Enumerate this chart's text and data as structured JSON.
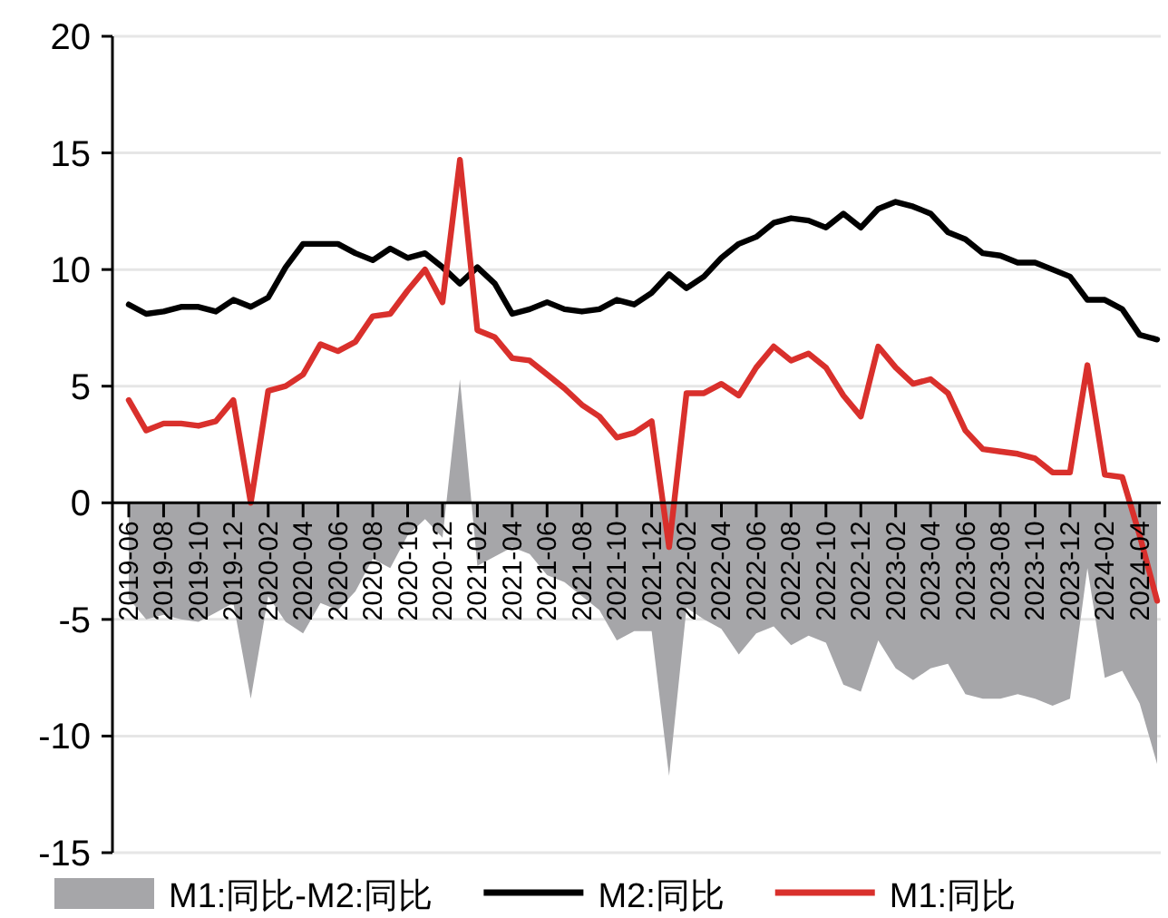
{
  "chart_data": {
    "type": "line",
    "categories": [
      "2019-06",
      null,
      "2019-08",
      null,
      "2019-10",
      null,
      "2019-12",
      null,
      "2020-02",
      null,
      "2020-04",
      null,
      "2020-06",
      null,
      "2020-08",
      null,
      "2020-10",
      null,
      "2020-12",
      null,
      "2021-02",
      null,
      "2021-04",
      null,
      "2021-06",
      null,
      "2021-08",
      null,
      "2021-10",
      null,
      "2021-12",
      null,
      "2022-02",
      null,
      "2022-04",
      null,
      "2022-06",
      null,
      "2022-08",
      null,
      "2022-10",
      null,
      "2022-12",
      null,
      "2023-02",
      null,
      "2023-04",
      null,
      "2023-06",
      null,
      "2023-08",
      null,
      "2023-10",
      null,
      "2023-12",
      null,
      "2024-02",
      null,
      "2024-04",
      null
    ],
    "series": [
      {
        "name": "M1:同比-M2:同比",
        "type": "area",
        "color": "#a6a6a9",
        "values": [
          -4.1,
          -5.0,
          -4.8,
          -5.0,
          -5.1,
          -4.7,
          -4.3,
          -8.4,
          -4.0,
          -5.1,
          -5.6,
          -4.3,
          -4.6,
          -3.8,
          -2.4,
          -2.8,
          -1.4,
          -0.7,
          -1.5,
          5.3,
          -2.7,
          -2.3,
          -1.9,
          -2.2,
          -3.1,
          -3.4,
          -4.0,
          -4.6,
          -5.9,
          -5.5,
          -5.5,
          -11.7,
          -4.5,
          -5.0,
          -5.4,
          -6.5,
          -5.6,
          -5.3,
          -6.1,
          -5.7,
          -6.0,
          -7.8,
          -8.1,
          -5.9,
          -7.1,
          -7.6,
          -7.1,
          -6.9,
          -8.2,
          -8.4,
          -8.4,
          -8.2,
          -8.4,
          -8.7,
          -8.4,
          -2.8,
          -7.5,
          -7.2,
          -8.6,
          -11.2
        ]
      },
      {
        "name": "M2:同比",
        "type": "line",
        "color": "#000000",
        "values": [
          8.5,
          8.1,
          8.2,
          8.4,
          8.4,
          8.2,
          8.7,
          8.4,
          8.8,
          10.1,
          11.1,
          11.1,
          11.1,
          10.7,
          10.4,
          10.9,
          10.5,
          10.7,
          10.1,
          9.4,
          10.1,
          9.4,
          8.1,
          8.3,
          8.6,
          8.3,
          8.2,
          8.3,
          8.7,
          8.5,
          9.0,
          9.8,
          9.2,
          9.7,
          10.5,
          11.1,
          11.4,
          12.0,
          12.2,
          12.1,
          11.8,
          12.4,
          11.8,
          12.6,
          12.9,
          12.7,
          12.4,
          11.6,
          11.3,
          10.7,
          10.6,
          10.3,
          10.3,
          10.0,
          9.7,
          8.7,
          8.7,
          8.3,
          7.2,
          7.0
        ]
      },
      {
        "name": "M1:同比",
        "type": "line",
        "color": "#d9302c",
        "values": [
          4.4,
          3.1,
          3.4,
          3.4,
          3.3,
          3.5,
          4.4,
          0.0,
          4.8,
          5.0,
          5.5,
          6.8,
          6.5,
          6.9,
          8.0,
          8.1,
          9.1,
          10.0,
          8.6,
          14.7,
          7.4,
          7.1,
          6.2,
          6.1,
          5.5,
          4.9,
          4.2,
          3.7,
          2.8,
          3.0,
          3.5,
          -1.9,
          4.7,
          4.7,
          5.1,
          4.6,
          5.8,
          6.7,
          6.1,
          6.4,
          5.8,
          4.6,
          3.7,
          6.7,
          5.8,
          5.1,
          5.3,
          4.7,
          3.1,
          2.3,
          2.2,
          2.1,
          1.9,
          1.3,
          1.3,
          5.9,
          1.2,
          1.1,
          -1.4,
          -4.2
        ]
      }
    ],
    "ylim": [
      -15,
      20
    ],
    "yticks": [
      -15,
      -10,
      -5,
      0,
      5,
      10,
      15,
      20
    ],
    "grid": "y",
    "legend": "bottom"
  }
}
